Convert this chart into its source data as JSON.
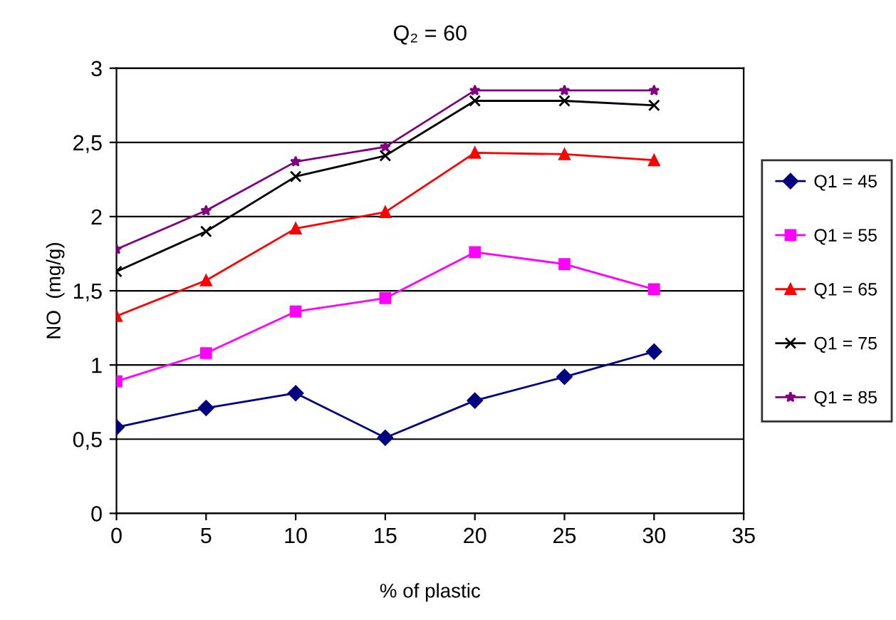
{
  "chart_data": {
    "type": "line",
    "title": "Q₂ = 60",
    "xlabel": "% of plastic",
    "ylabel": "NO  (mg/g)",
    "x": [
      0,
      5,
      10,
      15,
      20,
      25,
      30
    ],
    "series": [
      {
        "name": "Q1 = 45",
        "color": "#000080",
        "marker": "diamond",
        "values": [
          0.58,
          0.71,
          0.81,
          0.51,
          0.76,
          0.92,
          1.09
        ]
      },
      {
        "name": "Q1 = 55",
        "color": "#ff00ff",
        "marker": "square",
        "values": [
          0.89,
          1.08,
          1.36,
          1.45,
          1.76,
          1.68,
          1.51
        ]
      },
      {
        "name": "Q1 = 65",
        "color": "#ff0000",
        "marker": "triangle",
        "values": [
          1.33,
          1.57,
          1.92,
          2.03,
          2.43,
          2.42,
          2.38
        ]
      },
      {
        "name": "Q1 = 75",
        "color": "#000000",
        "marker": "cross",
        "values": [
          1.63,
          1.9,
          2.27,
          2.41,
          2.78,
          2.78,
          2.75
        ]
      },
      {
        "name": "Q1 = 85",
        "color": "#800080",
        "marker": "star",
        "values": [
          1.78,
          2.04,
          2.37,
          2.47,
          2.85,
          2.85,
          2.85
        ]
      }
    ],
    "xlim": [
      0,
      35
    ],
    "xticks": [
      0,
      5,
      10,
      15,
      20,
      25,
      30,
      35
    ],
    "ylim": [
      0,
      3
    ],
    "yticks": [
      0,
      {
        "value": 0.5,
        "label": "0,5"
      },
      1,
      {
        "value": 1.5,
        "label": "1,5"
      },
      2,
      {
        "value": 2.5,
        "label": "2,5"
      },
      3
    ],
    "grid": "y",
    "legend": "right",
    "line_style": "solid"
  }
}
